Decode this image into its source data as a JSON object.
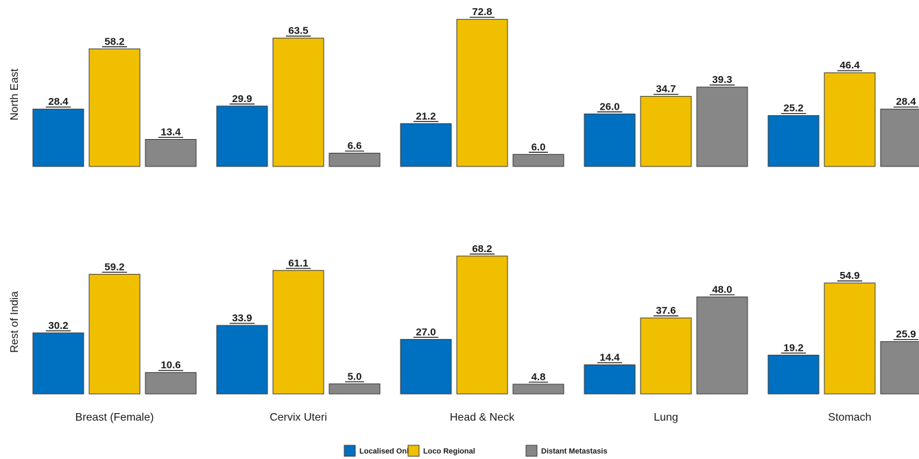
{
  "chart_data": {
    "type": "bar",
    "categories": [
      "Breast (Female)",
      "Cervix Uteri",
      "Head & Neck",
      "Lung",
      "Stomach"
    ],
    "legend": {
      "position": "bottom",
      "entries": [
        "Localised Only",
        "Loco Regional",
        "Distant Metastasis"
      ]
    },
    "colors": {
      "Localised Only": "#0070c0",
      "Loco Regional": "#f0c000",
      "Distant Metastasis": "#878787"
    },
    "ylim": [
      0,
      80
    ],
    "grid": false,
    "panels": [
      {
        "row_label": "North East",
        "series": [
          {
            "name": "Localised Only",
            "values": [
              28.4,
              29.9,
              21.2,
              26.0,
              25.2
            ]
          },
          {
            "name": "Loco Regional",
            "values": [
              58.2,
              63.5,
              72.8,
              34.7,
              46.4
            ]
          },
          {
            "name": "Distant Metastasis",
            "values": [
              13.4,
              6.6,
              6.0,
              39.3,
              28.4
            ]
          }
        ]
      },
      {
        "row_label": "Rest of India",
        "series": [
          {
            "name": "Localised Only",
            "values": [
              30.2,
              33.9,
              27.0,
              14.4,
              19.2
            ]
          },
          {
            "name": "Loco Regional",
            "values": [
              59.2,
              61.1,
              68.2,
              37.6,
              54.9
            ]
          },
          {
            "name": "Distant Metastasis",
            "values": [
              10.6,
              5.0,
              4.8,
              48.0,
              25.9
            ]
          }
        ]
      }
    ]
  }
}
